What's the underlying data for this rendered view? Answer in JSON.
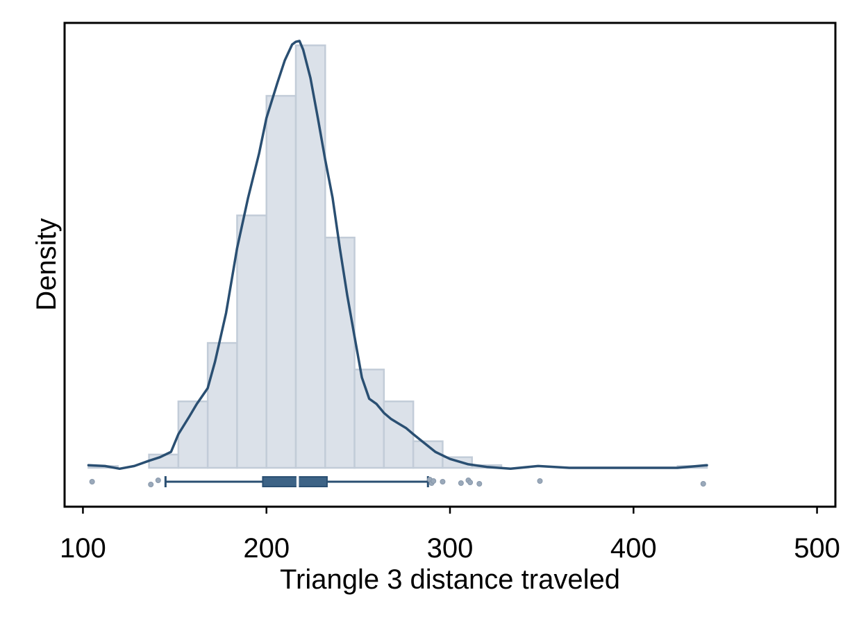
{
  "chart_data": {
    "type": "histogram",
    "title": "",
    "xlabel": "Triangle 3 distance traveled",
    "ylabel": "Density",
    "xlim": [
      90,
      510
    ],
    "xticks": [
      100,
      200,
      300,
      400,
      500
    ],
    "y_ticks_shown": false,
    "grid": false,
    "bins": [
      {
        "start": 103,
        "end": 119,
        "height": 0.0002
      },
      {
        "start": 136,
        "end": 152,
        "height": 0.0015
      },
      {
        "start": 152,
        "end": 168,
        "height": 0.0075
      },
      {
        "start": 168,
        "end": 184,
        "height": 0.0141
      },
      {
        "start": 184,
        "end": 200,
        "height": 0.0285
      },
      {
        "start": 200,
        "end": 216,
        "height": 0.042
      },
      {
        "start": 216,
        "end": 232,
        "height": 0.0477
      },
      {
        "start": 232,
        "end": 248,
        "height": 0.026
      },
      {
        "start": 248,
        "end": 264,
        "height": 0.0111
      },
      {
        "start": 264,
        "end": 280,
        "height": 0.0075
      },
      {
        "start": 280,
        "end": 296,
        "height": 0.003
      },
      {
        "start": 296,
        "end": 312,
        "height": 0.0012
      },
      {
        "start": 312,
        "end": 328,
        "height": 0.0003
      },
      {
        "start": 424,
        "end": 440,
        "height": 0.0002
      }
    ],
    "density_curve": {
      "x": [
        103,
        112,
        120,
        128,
        136,
        142,
        148,
        152,
        158,
        162,
        168,
        172,
        178,
        184,
        190,
        196,
        200,
        206,
        210,
        214,
        216,
        218,
        220,
        224,
        228,
        232,
        236,
        240,
        244,
        248,
        252,
        256,
        260,
        264,
        268,
        272,
        276,
        280,
        286,
        292,
        300,
        310,
        320,
        333,
        348,
        365,
        424,
        440
      ],
      "y": [
        0.0003,
        0.0002,
        -0.0001,
        0.0002,
        0.0008,
        0.0012,
        0.0018,
        0.0038,
        0.0058,
        0.0072,
        0.009,
        0.012,
        0.0175,
        0.0248,
        0.0305,
        0.0355,
        0.0395,
        0.0435,
        0.046,
        0.0478,
        0.0481,
        0.0482,
        0.0472,
        0.044,
        0.0395,
        0.0348,
        0.0305,
        0.0248,
        0.0195,
        0.0148,
        0.0102,
        0.0078,
        0.0072,
        0.0062,
        0.0055,
        0.005,
        0.0045,
        0.0038,
        0.0028,
        0.0018,
        0.001,
        0.0004,
        0.0001,
        -0.0001,
        0.0002,
        0.0,
        0.0,
        0.0003
      ]
    },
    "boxplot": {
      "whisker_low": 145,
      "q1": 198,
      "median": 217,
      "q3": 233,
      "whisker_high": 288,
      "outliers": [
        105,
        137,
        141,
        289,
        290,
        291,
        296,
        306,
        310,
        311,
        316,
        349,
        438
      ]
    },
    "colors": {
      "bar_fill": "#dbe1e9",
      "bar_edge": "#c2ccd8",
      "curve": "#2a4f72",
      "box": "#3d6386",
      "outlier": "#9aa9ba",
      "axis": "#000000"
    }
  }
}
